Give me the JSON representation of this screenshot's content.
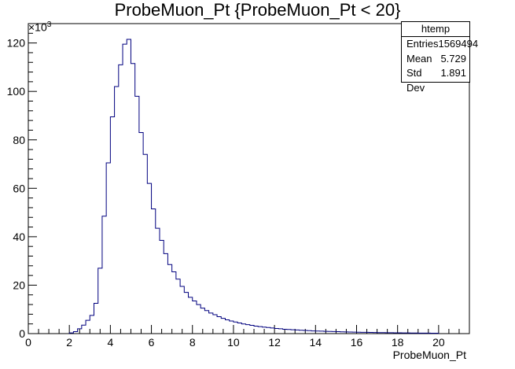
{
  "chart_data": {
    "type": "bar",
    "title": "ProbeMuon_Pt {ProbeMuon_Pt < 20}",
    "xlabel": "ProbeMuon_Pt",
    "ylabel": "",
    "y_scale_label": "×10",
    "y_scale_exponent": "3",
    "xlim": [
      0,
      21.5
    ],
    "ylim": [
      0,
      128
    ],
    "x_ticks": [
      "0",
      "2",
      "4",
      "6",
      "8",
      "10",
      "12",
      "14",
      "16",
      "18",
      "20"
    ],
    "y_ticks": [
      "0",
      "20",
      "40",
      "60",
      "80",
      "100",
      "120"
    ],
    "bin_width": 0.2,
    "bin_start": 2.0,
    "values": [
      0.3,
      0.8,
      2.0,
      3.5,
      5.5,
      7.5,
      12.5,
      27.0,
      48.5,
      70.5,
      89.5,
      102.0,
      111.0,
      119.5,
      121.5,
      111.5,
      98.0,
      83.0,
      74.0,
      62.0,
      51.5,
      43.5,
      38.5,
      33.0,
      28.5,
      25.5,
      22.5,
      19.5,
      17.0,
      15.0,
      13.5,
      12.0,
      10.5,
      9.5,
      8.5,
      7.8,
      7.0,
      6.3,
      5.7,
      5.2,
      4.8,
      4.4,
      4.0,
      3.7,
      3.4,
      3.1,
      2.9,
      2.7,
      2.5,
      2.3,
      2.1,
      2.0,
      1.8,
      1.7,
      1.6,
      1.5,
      1.4,
      1.3,
      1.2,
      1.1,
      1.05,
      1.0,
      0.95,
      0.9,
      0.85,
      0.8,
      0.75,
      0.7,
      0.65,
      0.6,
      0.57,
      0.54,
      0.51,
      0.48,
      0.45,
      0.42,
      0.4,
      0.38,
      0.36,
      0.34,
      0.32,
      0.3,
      0.28,
      0.26,
      0.24,
      0.22,
      0.2,
      0.19,
      0.18,
      0.17
    ],
    "line_color": "#00007f",
    "grid": false
  },
  "stats": {
    "name": "htemp",
    "rows": [
      {
        "label": "Entries",
        "value": "1569494"
      },
      {
        "label": "Mean",
        "value": "5.729"
      },
      {
        "label": "Std Dev",
        "value": "1.891"
      }
    ]
  }
}
